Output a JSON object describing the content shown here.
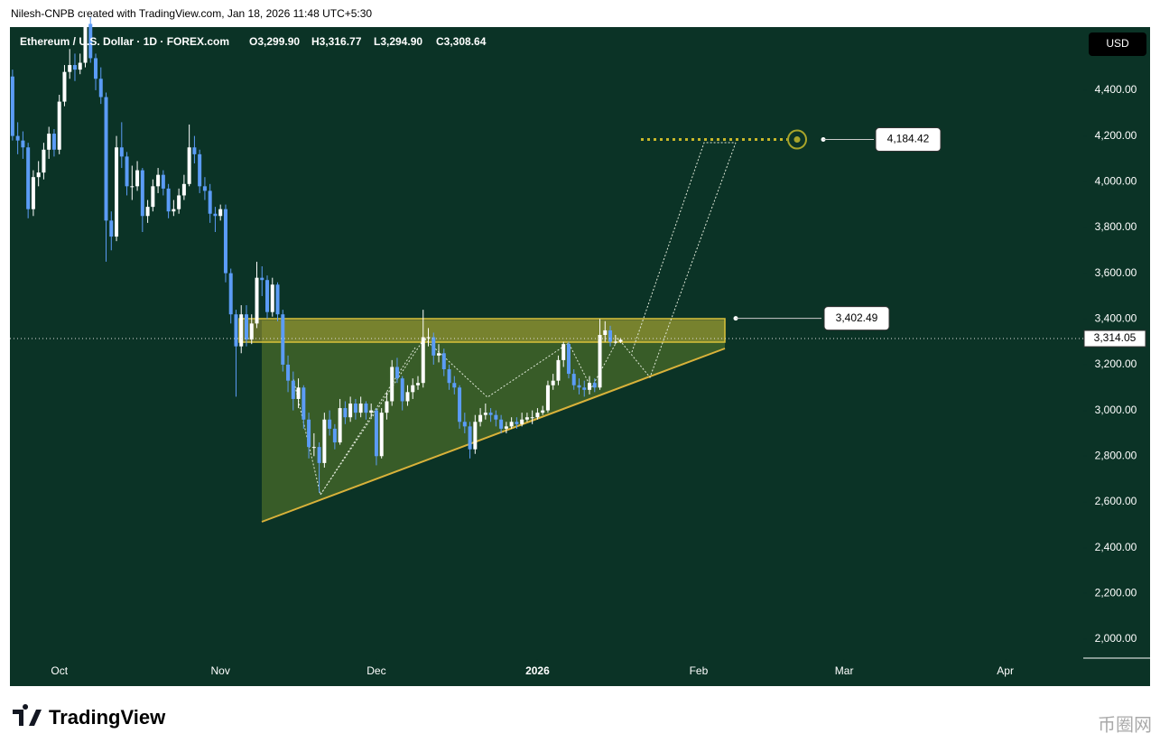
{
  "header": "Nilesh-CNPB created with TradingView.com, Jan 18, 2026 11:48 UTC+5:30",
  "logo": "TradingView",
  "watermark": "币圈网",
  "chart_data": {
    "type": "candlestick",
    "title": "Ethereum / U.S. Dollar · 1D · FOREX.com",
    "ohlc_legend": [
      "O3,299.90",
      "H3,316.77",
      "L3,294.90",
      "C3,308.64"
    ],
    "currency": "USD",
    "up_color": "#ffffff",
    "down_color": "#5b9cf6",
    "ylim": [
      1913,
      4676
    ],
    "yticks": [
      {
        "value": 2000,
        "label": "2,000.00"
      },
      {
        "value": 2200,
        "label": "2,200.00"
      },
      {
        "value": 2400,
        "label": "2,400.00"
      },
      {
        "value": 2600,
        "label": "2,600.00"
      },
      {
        "value": 2800,
        "label": "2,800.00"
      },
      {
        "value": 3000,
        "label": "3,000.00"
      },
      {
        "value": 3200,
        "label": "3,200.00"
      },
      {
        "value": 3400,
        "label": "3,400.00"
      },
      {
        "value": 3600,
        "label": "3,600.00"
      },
      {
        "value": 3800,
        "label": "3,800.00"
      },
      {
        "value": 4000,
        "label": "4,000.00"
      },
      {
        "value": 4200,
        "label": "4,200.00"
      },
      {
        "value": 4400,
        "label": "4,400.00"
      }
    ],
    "xlim": [
      -0.5,
      206
    ],
    "xticks": [
      {
        "value": 9,
        "label": "Oct"
      },
      {
        "value": 40,
        "label": "Nov"
      },
      {
        "value": 70,
        "label": "Dec"
      },
      {
        "value": 101,
        "label": "2026"
      },
      {
        "value": 132,
        "label": "Feb"
      },
      {
        "value": 160,
        "label": "Mar"
      },
      {
        "value": 191,
        "label": "Apr"
      }
    ],
    "candles": [
      [
        4460,
        4490,
        4180,
        4200
      ],
      [
        4200,
        4260,
        4120,
        4180
      ],
      [
        4180,
        4220,
        4100,
        4150
      ],
      [
        4150,
        4170,
        3840,
        3880
      ],
      [
        3880,
        4050,
        3850,
        4020
      ],
      [
        4020,
        4090,
        3980,
        4040
      ],
      [
        4040,
        4170,
        4010,
        4140
      ],
      [
        4140,
        4240,
        4100,
        4210
      ],
      [
        4210,
        4230,
        4110,
        4140
      ],
      [
        4140,
        4380,
        4120,
        4350
      ],
      [
        4350,
        4510,
        4330,
        4480
      ],
      [
        4480,
        4580,
        4450,
        4510
      ],
      [
        4510,
        4560,
        4440,
        4490
      ],
      [
        4490,
        4560,
        4470,
        4520
      ],
      [
        4520,
        4760,
        4500,
        4690
      ],
      [
        4690,
        4720,
        4520,
        4540
      ],
      [
        4540,
        4560,
        4400,
        4450
      ],
      [
        4450,
        4500,
        4340,
        4370
      ],
      [
        4370,
        4390,
        3650,
        3830
      ],
      [
        3830,
        3870,
        3700,
        3760
      ],
      [
        3760,
        4200,
        3740,
        4150
      ],
      [
        4150,
        4260,
        4060,
        4110
      ],
      [
        4110,
        4130,
        3940,
        3980
      ],
      [
        3980,
        4070,
        3920,
        3980
      ],
      [
        3980,
        4090,
        3960,
        4050
      ],
      [
        4050,
        4060,
        3780,
        3850
      ],
      [
        3850,
        3920,
        3820,
        3890
      ],
      [
        3890,
        4010,
        3870,
        3980
      ],
      [
        3980,
        4060,
        3950,
        4030
      ],
      [
        4030,
        4050,
        3940,
        3970
      ],
      [
        3970,
        3990,
        3840,
        3870
      ],
      [
        3870,
        3920,
        3850,
        3880
      ],
      [
        3880,
        3970,
        3860,
        3940
      ],
      [
        3940,
        4030,
        3920,
        3990
      ],
      [
        3990,
        4250,
        3980,
        4150
      ],
      [
        4150,
        4200,
        4080,
        4120
      ],
      [
        4120,
        4140,
        3950,
        3980
      ],
      [
        3980,
        4020,
        3920,
        3960
      ],
      [
        3960,
        3990,
        3820,
        3860
      ],
      [
        3860,
        3890,
        3780,
        3850
      ],
      [
        3850,
        3900,
        3830,
        3880
      ],
      [
        3880,
        3900,
        3560,
        3600
      ],
      [
        3600,
        3620,
        3380,
        3420
      ],
      [
        3420,
        3440,
        3060,
        3280
      ],
      [
        3280,
        3460,
        3250,
        3420
      ],
      [
        3420,
        3460,
        3280,
        3310
      ],
      [
        3310,
        3420,
        3290,
        3380
      ],
      [
        3380,
        3650,
        3360,
        3580
      ],
      [
        3580,
        3630,
        3500,
        3570
      ],
      [
        3570,
        3590,
        3400,
        3430
      ],
      [
        3430,
        3580,
        3410,
        3550
      ],
      [
        3550,
        3560,
        3390,
        3420
      ],
      [
        3420,
        3440,
        3170,
        3200
      ],
      [
        3200,
        3240,
        3080,
        3130
      ],
      [
        3130,
        3170,
        3000,
        3050
      ],
      [
        3050,
        3140,
        3010,
        3100
      ],
      [
        3100,
        3110,
        2920,
        2960
      ],
      [
        2960,
        2990,
        2790,
        2840
      ],
      [
        2840,
        2900,
        2800,
        2840
      ],
      [
        2840,
        2860,
        2640,
        2770
      ],
      [
        2770,
        2990,
        2750,
        2960
      ],
      [
        2960,
        3000,
        2890,
        2920
      ],
      [
        2920,
        2940,
        2830,
        2860
      ],
      [
        2860,
        3050,
        2850,
        3010
      ],
      [
        3010,
        3040,
        2940,
        2970
      ],
      [
        2970,
        3060,
        2950,
        3030
      ],
      [
        3030,
        3050,
        2960,
        2990
      ],
      [
        2990,
        3060,
        2970,
        3030
      ],
      [
        3030,
        3040,
        2960,
        2990
      ],
      [
        2990,
        3030,
        2970,
        3000
      ],
      [
        3000,
        3010,
        2760,
        2800
      ],
      [
        2800,
        3010,
        2790,
        2990
      ],
      [
        2990,
        3080,
        2960,
        3040
      ],
      [
        3040,
        3220,
        3020,
        3190
      ],
      [
        3190,
        3230,
        3120,
        3140
      ],
      [
        3140,
        3150,
        3000,
        3040
      ],
      [
        3040,
        3110,
        3020,
        3080
      ],
      [
        3080,
        3140,
        3050,
        3110
      ],
      [
        3110,
        3150,
        3090,
        3120
      ],
      [
        3120,
        3440,
        3100,
        3320
      ],
      [
        3320,
        3360,
        3280,
        3320
      ],
      [
        3320,
        3340,
        3200,
        3240
      ],
      [
        3240,
        3290,
        3210,
        3250
      ],
      [
        3250,
        3270,
        3150,
        3180
      ],
      [
        3180,
        3200,
        3090,
        3120
      ],
      [
        3120,
        3150,
        3070,
        3100
      ],
      [
        3100,
        3110,
        2920,
        2950
      ],
      [
        2950,
        2990,
        2900,
        2930
      ],
      [
        2930,
        2950,
        2790,
        2830
      ],
      [
        2830,
        2980,
        2810,
        2950
      ],
      [
        2950,
        3010,
        2930,
        2980
      ],
      [
        2980,
        3030,
        2960,
        2990
      ],
      [
        2990,
        3010,
        2950,
        2980
      ],
      [
        2980,
        3000,
        2930,
        2960
      ],
      [
        2960,
        2980,
        2900,
        2920
      ],
      [
        2920,
        2950,
        2900,
        2930
      ],
      [
        2930,
        2970,
        2920,
        2950
      ],
      [
        2950,
        2970,
        2920,
        2940
      ],
      [
        2940,
        2990,
        2930,
        2960
      ],
      [
        2960,
        2990,
        2950,
        2970
      ],
      [
        2970,
        3000,
        2940,
        2970
      ],
      [
        2970,
        3010,
        2960,
        2990
      ],
      [
        2990,
        3020,
        2980,
        3000
      ],
      [
        3000,
        3130,
        2990,
        3110
      ],
      [
        3110,
        3160,
        3090,
        3130
      ],
      [
        3130,
        3240,
        3110,
        3220
      ],
      [
        3220,
        3300,
        3190,
        3290
      ],
      [
        3290,
        3300,
        3140,
        3160
      ],
      [
        3160,
        3180,
        3090,
        3110
      ],
      [
        3110,
        3140,
        3070,
        3100
      ],
      [
        3100,
        3130,
        3060,
        3090
      ],
      [
        3090,
        3150,
        3070,
        3120
      ],
      [
        3120,
        3140,
        3080,
        3100
      ],
      [
        3100,
        3400,
        3090,
        3330
      ],
      [
        3330,
        3390,
        3300,
        3350
      ],
      [
        3350,
        3370,
        3280,
        3300
      ],
      [
        3300,
        3330,
        3290,
        3300
      ],
      [
        3299.9,
        3316.77,
        3294.9,
        3308.64
      ]
    ],
    "annotations": {
      "target": {
        "value": 4184.42,
        "label": "4,184.42"
      },
      "resistance": {
        "value": 3402.49,
        "label": "3,402.49"
      },
      "last_price": {
        "value": 3314.05,
        "label": "3,314.05"
      }
    }
  }
}
